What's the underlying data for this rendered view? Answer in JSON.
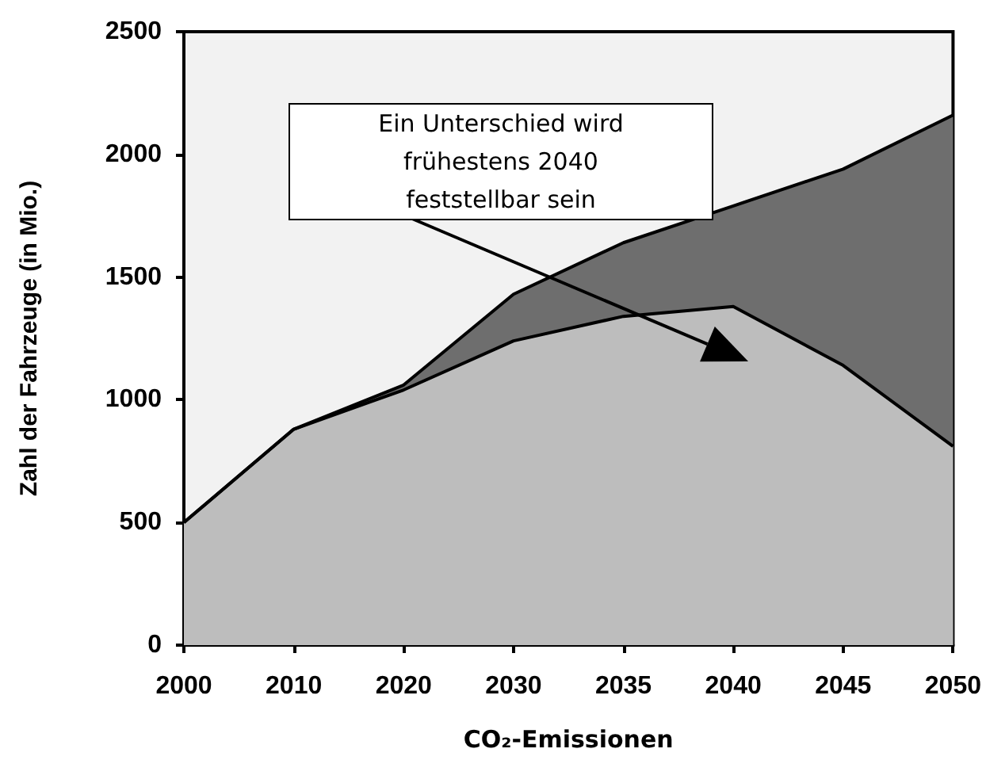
{
  "chart_data": {
    "type": "area",
    "xlabel": "CO₂-Emissionen",
    "ylabel": "Zahl der Fahrzeuge (in Mio.)",
    "categories": [
      "2000",
      "2010",
      "2020",
      "2030",
      "2035",
      "2040",
      "2045",
      "2050"
    ],
    "series": [
      {
        "color": "#6e6e6e",
        "values": [
          500,
          880,
          1060,
          1430,
          1640,
          1790,
          1940,
          2160
        ]
      },
      {
        "color": "#bdbdbd",
        "values": [
          500,
          880,
          1040,
          1240,
          1340,
          1380,
          1140,
          810
        ]
      }
    ],
    "ylim": [
      0,
      2500
    ],
    "yticks": [
      0,
      500,
      1000,
      1500,
      2000,
      2500
    ],
    "annotations": [
      "Ein Unterschied wird frühestens 2040 feststellbar sein"
    ],
    "grid": false
  }
}
